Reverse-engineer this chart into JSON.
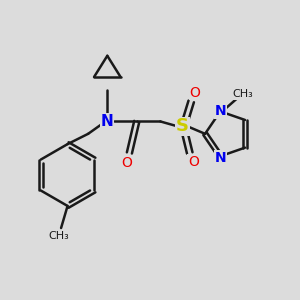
{
  "background_color": "#dcdcdc",
  "figsize": [
    3.0,
    3.0
  ],
  "dpi": 100,
  "bond_color": "#1a1a1a",
  "bond_lw": 1.8,
  "dbo": 0.008,
  "colors": {
    "N": "#0000ee",
    "O": "#ee0000",
    "S": "#cccc00",
    "C": "#1a1a1a"
  }
}
